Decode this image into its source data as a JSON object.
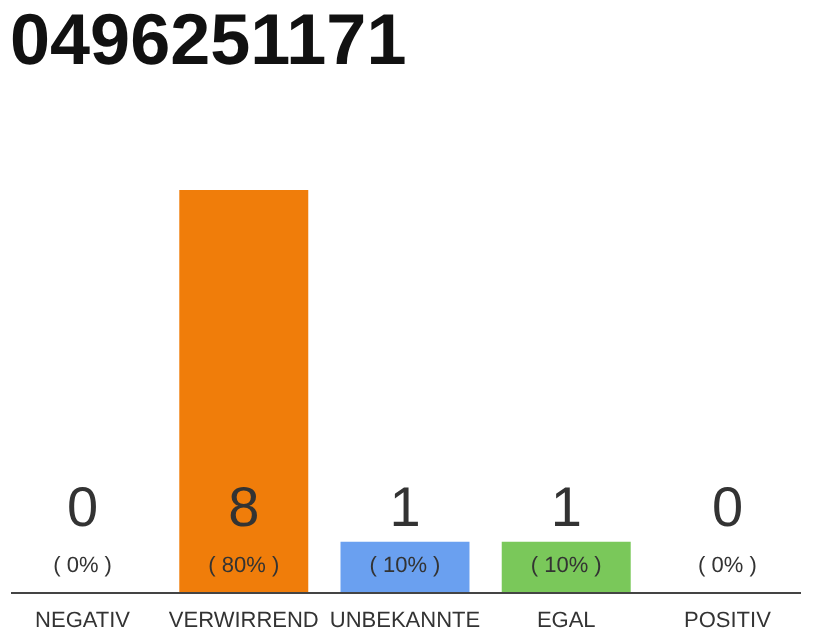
{
  "chart_data": {
    "type": "bar",
    "title": "0496251171",
    "categories": [
      "NEGATIV",
      "VERWIRREND",
      "UNBEKANNTE",
      "EGAL",
      "POSITIV"
    ],
    "values": [
      0,
      8,
      1,
      1,
      0
    ],
    "colors": [
      "#c8c8c8",
      "#f07d0a",
      "#6aa0f0",
      "#7ac85a",
      "#c8c8c8"
    ],
    "data_labels": true,
    "tick_labels": "x",
    "annotations": [
      "( 0% )",
      "( 80% )",
      "( 10% )",
      "( 10% )",
      "( 0% )"
    ]
  }
}
